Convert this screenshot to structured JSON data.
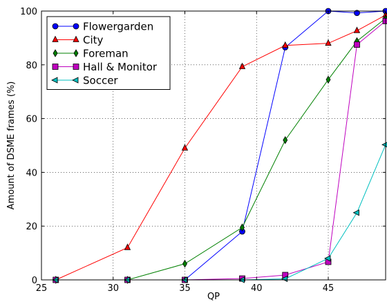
{
  "chart_data": {
    "type": "line",
    "xlabel": "QP",
    "ylabel": "Amount of DSME frames (%)",
    "xlim": [
      25,
      49
    ],
    "ylim": [
      0,
      100
    ],
    "xticks": [
      25,
      30,
      35,
      40,
      45
    ],
    "yticks": [
      0,
      20,
      40,
      60,
      80,
      100
    ],
    "grid": true,
    "legend_position": "top-left",
    "series": [
      {
        "name": "Flowergarden",
        "color": "#0000ff",
        "marker": "circle",
        "x": [
          26,
          31,
          35,
          39,
          42,
          45,
          47,
          49
        ],
        "y": [
          0,
          0,
          0,
          18,
          86.5,
          100,
          99.3,
          100
        ]
      },
      {
        "name": "City",
        "color": "#ff0000",
        "marker": "triangle-up",
        "x": [
          26,
          31,
          35,
          39,
          42,
          45,
          47,
          49
        ],
        "y": [
          0,
          12,
          49,
          79.3,
          87.2,
          88,
          92.7,
          98.5
        ]
      },
      {
        "name": "Foreman",
        "color": "#008000",
        "marker": "diamond",
        "x": [
          26,
          31,
          35,
          39,
          42,
          45,
          47,
          49
        ],
        "y": [
          0,
          0,
          6,
          19.5,
          52,
          74.5,
          88.8,
          97.3
        ]
      },
      {
        "name": "Hall & Monitor",
        "color": "#bf00bf",
        "marker": "square",
        "x": [
          26,
          31,
          35,
          39,
          42,
          45,
          47,
          49
        ],
        "y": [
          0,
          0,
          0,
          0.5,
          1.8,
          6.7,
          87.5,
          96.3
        ]
      },
      {
        "name": "Soccer",
        "color": "#00bfbf",
        "marker": "triangle-left",
        "x": [
          26,
          31,
          35,
          39,
          42,
          45,
          47,
          49
        ],
        "y": [
          0,
          0,
          0,
          0,
          0.4,
          8,
          25,
          50.3
        ]
      }
    ]
  }
}
